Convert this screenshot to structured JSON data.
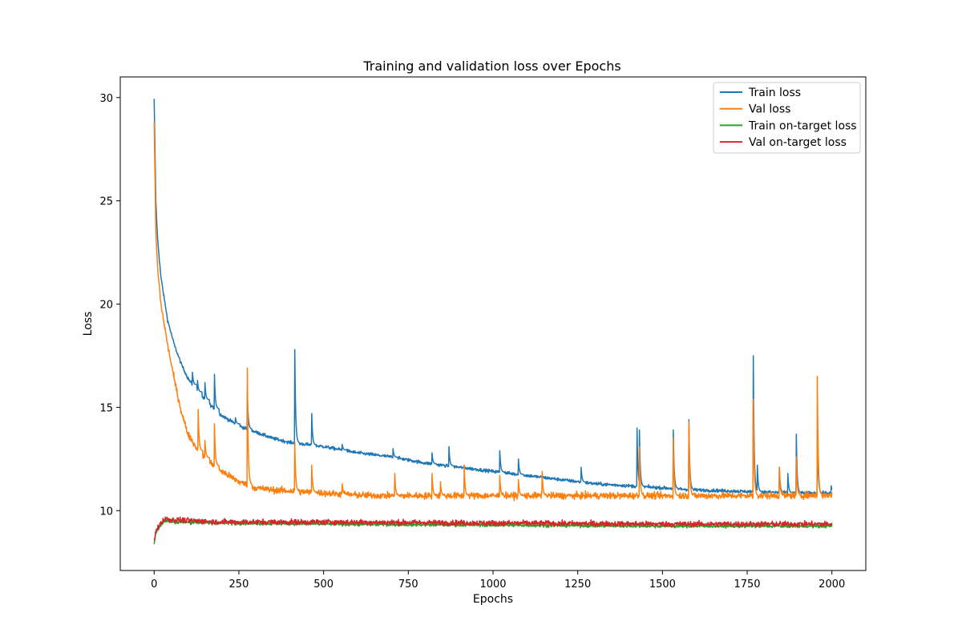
{
  "chart_data": {
    "type": "line",
    "title": "Training and validation loss over Epochs",
    "xlabel": "Epochs",
    "ylabel": "Loss",
    "xlim": [
      -100,
      2100
    ],
    "ylim": [
      7.1,
      31.0
    ],
    "xticks": [
      0,
      250,
      500,
      750,
      1000,
      1250,
      1500,
      1750,
      2000
    ],
    "yticks": [
      10,
      15,
      20,
      25,
      30
    ],
    "grid": false,
    "legend_position": "upper right",
    "series": [
      {
        "name": "Train loss",
        "color": "#1f77b4",
        "trend": [
          [
            0,
            29.9
          ],
          [
            5,
            25.0
          ],
          [
            10,
            23.2
          ],
          [
            20,
            21.3
          ],
          [
            40,
            19.2
          ],
          [
            60,
            18.0
          ],
          [
            80,
            17.1
          ],
          [
            100,
            16.4
          ],
          [
            130,
            15.7
          ],
          [
            160,
            15.2
          ],
          [
            200,
            14.6
          ],
          [
            250,
            14.1
          ],
          [
            300,
            13.8
          ],
          [
            350,
            13.5
          ],
          [
            400,
            13.3
          ],
          [
            450,
            13.2
          ],
          [
            500,
            13.1
          ],
          [
            600,
            12.8
          ],
          [
            700,
            12.6
          ],
          [
            800,
            12.3
          ],
          [
            900,
            12.1
          ],
          [
            1000,
            11.9
          ],
          [
            1100,
            11.7
          ],
          [
            1200,
            11.5
          ],
          [
            1300,
            11.3
          ],
          [
            1400,
            11.2
          ],
          [
            1500,
            11.1
          ],
          [
            1600,
            11.0
          ],
          [
            1700,
            10.95
          ],
          [
            1800,
            10.9
          ],
          [
            1900,
            10.85
          ],
          [
            2000,
            10.85
          ]
        ],
        "spikes": [
          [
            113,
            16.7
          ],
          [
            128,
            16.3
          ],
          [
            150,
            16.2
          ],
          [
            178,
            16.6
          ],
          [
            240,
            14.5
          ],
          [
            275,
            15.8
          ],
          [
            415,
            17.8
          ],
          [
            465,
            14.7
          ],
          [
            555,
            13.2
          ],
          [
            705,
            13.0
          ],
          [
            820,
            12.8
          ],
          [
            870,
            13.1
          ],
          [
            1020,
            12.9
          ],
          [
            1075,
            12.5
          ],
          [
            1260,
            12.1
          ],
          [
            1425,
            14.0
          ],
          [
            1432,
            13.9
          ],
          [
            1532,
            13.9
          ],
          [
            1578,
            14.4
          ],
          [
            1768,
            17.5
          ],
          [
            1780,
            12.2
          ],
          [
            1845,
            12.1
          ],
          [
            1870,
            11.8
          ],
          [
            1895,
            13.7
          ],
          [
            1957,
            13.9
          ],
          [
            1998,
            11.2
          ]
        ],
        "noise": 0.08
      },
      {
        "name": "Val loss",
        "color": "#ff7f0e",
        "trend": [
          [
            0,
            28.8
          ],
          [
            5,
            23.5
          ],
          [
            10,
            21.8
          ],
          [
            20,
            20.0
          ],
          [
            40,
            18.0
          ],
          [
            60,
            16.3
          ],
          [
            80,
            14.8
          ],
          [
            100,
            13.7
          ],
          [
            130,
            12.9
          ],
          [
            160,
            12.4
          ],
          [
            200,
            11.9
          ],
          [
            250,
            11.4
          ],
          [
            300,
            11.1
          ],
          [
            350,
            11.0
          ],
          [
            400,
            10.95
          ],
          [
            500,
            10.85
          ],
          [
            600,
            10.75
          ],
          [
            700,
            10.72
          ],
          [
            800,
            10.72
          ],
          [
            1000,
            10.72
          ],
          [
            1200,
            10.72
          ],
          [
            1400,
            10.72
          ],
          [
            1600,
            10.72
          ],
          [
            1800,
            10.72
          ],
          [
            2000,
            10.75
          ]
        ],
        "spikes": [
          [
            130,
            14.9
          ],
          [
            150,
            13.4
          ],
          [
            178,
            14.2
          ],
          [
            275,
            16.9
          ],
          [
            415,
            13.3
          ],
          [
            465,
            12.2
          ],
          [
            555,
            11.3
          ],
          [
            710,
            11.8
          ],
          [
            820,
            11.8
          ],
          [
            845,
            11.4
          ],
          [
            915,
            12.2
          ],
          [
            1020,
            11.7
          ],
          [
            1075,
            11.5
          ],
          [
            1145,
            11.9
          ],
          [
            1432,
            13.1
          ],
          [
            1532,
            13.5
          ],
          [
            1578,
            14.3
          ],
          [
            1768,
            15.4
          ],
          [
            1845,
            12.1
          ],
          [
            1895,
            12.6
          ],
          [
            1957,
            16.5
          ]
        ],
        "noise": 0.16
      },
      {
        "name": "Train on-target loss",
        "color": "#2ca02c",
        "trend": [
          [
            0,
            8.4
          ],
          [
            5,
            8.9
          ],
          [
            15,
            9.2
          ],
          [
            30,
            9.5
          ],
          [
            60,
            9.45
          ],
          [
            200,
            9.4
          ],
          [
            500,
            9.35
          ],
          [
            1000,
            9.3
          ],
          [
            1500,
            9.25
          ],
          [
            2000,
            9.25
          ]
        ],
        "spikes": [],
        "noise": 0.08
      },
      {
        "name": "Val on-target loss",
        "color": "#d62728",
        "trend": [
          [
            0,
            8.5
          ],
          [
            5,
            9.0
          ],
          [
            15,
            9.3
          ],
          [
            30,
            9.6
          ],
          [
            60,
            9.55
          ],
          [
            200,
            9.45
          ],
          [
            500,
            9.45
          ],
          [
            1000,
            9.4
          ],
          [
            1500,
            9.35
          ],
          [
            2000,
            9.35
          ]
        ],
        "spikes": [],
        "noise": 0.13
      }
    ]
  }
}
